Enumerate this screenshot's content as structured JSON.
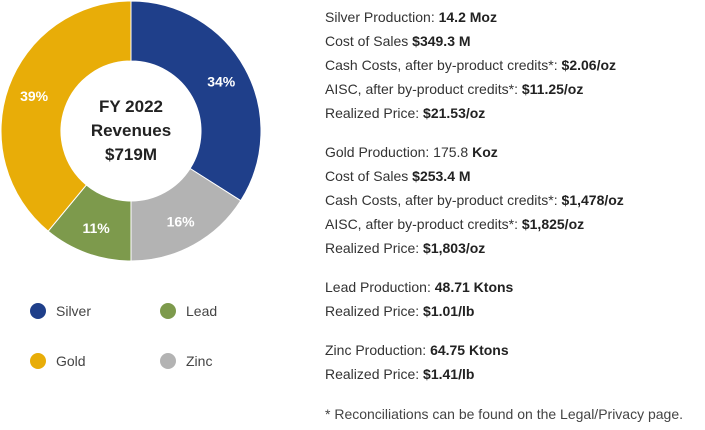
{
  "chart_data": {
    "type": "pie",
    "center_label": [
      "FY 2022",
      "Revenues",
      "$719M"
    ],
    "categories": [
      "Silver",
      "Zinc",
      "Lead",
      "Gold"
    ],
    "values": [
      34,
      16,
      11,
      39
    ],
    "labels": [
      "34%",
      "16%",
      "11%",
      "39%"
    ],
    "colors": [
      "#1f3f8a",
      "#b3b3b3",
      "#7d9a4c",
      "#e8ad08"
    ],
    "donut": true,
    "legend_position": "bottom-left"
  },
  "legend": [
    {
      "label": "Silver",
      "color": "#1f3f8a"
    },
    {
      "label": "Lead",
      "color": "#7d9a4c"
    },
    {
      "label": "Gold",
      "color": "#e8ad08"
    },
    {
      "label": "Zinc",
      "color": "#b3b3b3"
    }
  ],
  "info": {
    "silver": [
      {
        "label": "Silver Production: ",
        "value": "14.2 Moz"
      },
      {
        "label": "Cost of Sales ",
        "value": "$349.3 M"
      },
      {
        "label": "Cash Costs, after by-product credits*: ",
        "value": "$2.06/oz"
      },
      {
        "label": "AISC, after by-product credits*: ",
        "value": "$11.25/oz"
      },
      {
        "label": "Realized Price: ",
        "value": "$21.53/oz"
      }
    ],
    "gold": [
      {
        "label": "Gold Production: 175.8 ",
        "value": "Koz"
      },
      {
        "label": "Cost of Sales ",
        "value": "$253.4 M"
      },
      {
        "label": "Cash Costs, after by-product credits*: ",
        "value": "$1,478/oz"
      },
      {
        "label": "AISC, after by-product credits*: ",
        "value": "$1,825/oz"
      },
      {
        "label": "Realized Price: ",
        "value": "$1,803/oz"
      }
    ],
    "lead": [
      {
        "label": "Lead Production: ",
        "value": "48.71 Ktons"
      },
      {
        "label": "Realized Price: ",
        "value": "$1.01/lb"
      }
    ],
    "zinc": [
      {
        "label": "Zinc Production: ",
        "value": "64.75 Ktons"
      },
      {
        "label": "Realized Price: ",
        "value": "$1.41/lb"
      }
    ]
  },
  "footnote": "* Reconciliations can be found on the Legal/Privacy page."
}
